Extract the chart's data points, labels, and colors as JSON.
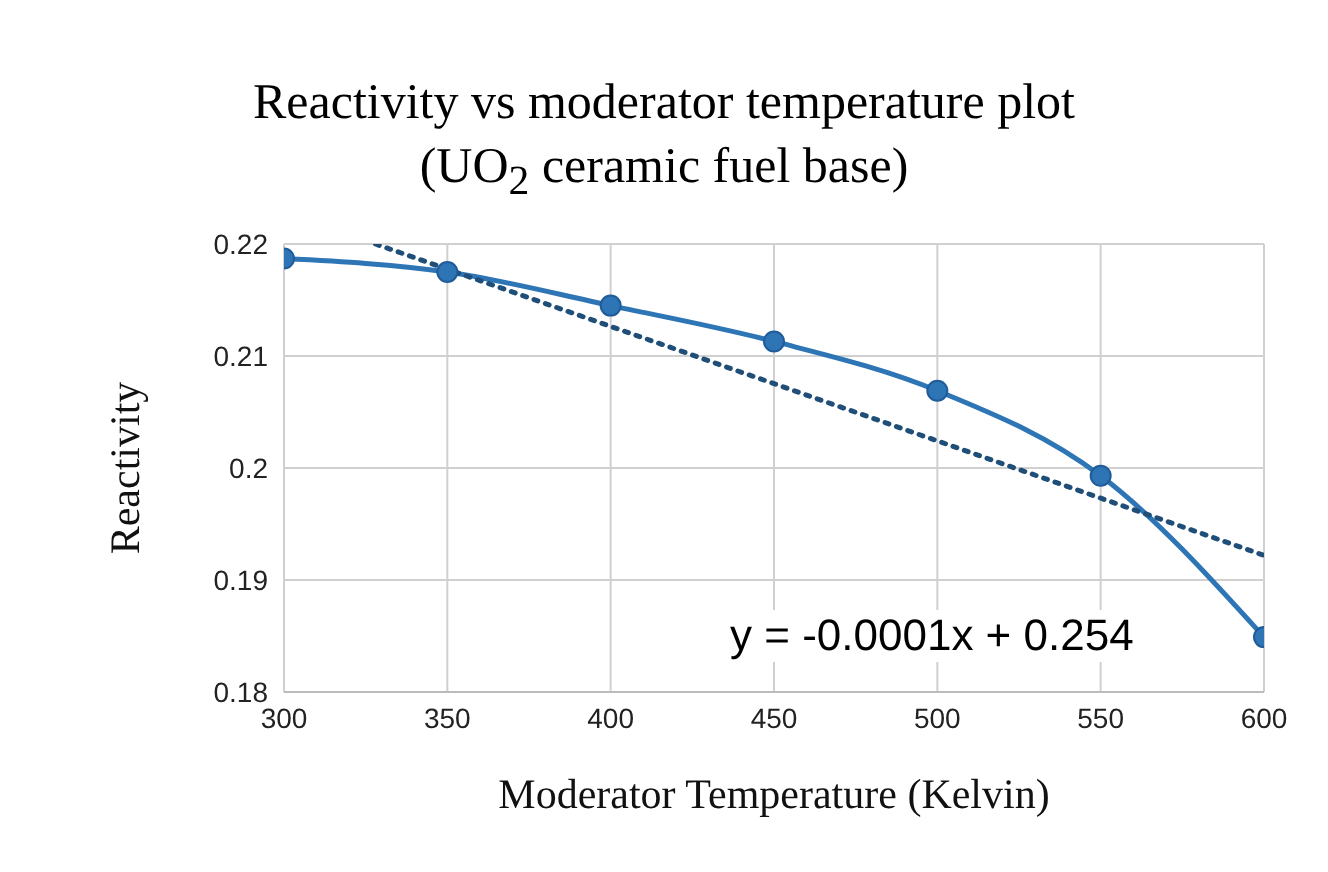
{
  "chart_data": {
    "type": "line",
    "title": "Reactivity vs moderator temperature plot",
    "subtitle": "(UO$_{2}$ ceramic fuel base)",
    "xlabel": "Moderator Temperature (Kelvin)",
    "ylabel": "Reactivity",
    "x": [
      300,
      350,
      400,
      450,
      500,
      550,
      600
    ],
    "series": [
      {
        "color": "#2e75b6",
        "values": [
          0.2187,
          0.2175,
          0.2145,
          0.2113,
          0.2069,
          0.1993,
          0.1849
        ],
        "marker": "circle",
        "line_style": "solid"
      },
      {
        "type": "line",
        "color": "#1f4e79",
        "x": [
          328,
          600
        ],
        "values": [
          0.22,
          0.1922
        ],
        "marker": "none",
        "line_style": "dotted"
      }
    ],
    "xlim": [
      300,
      600
    ],
    "xticks": [
      300,
      350,
      400,
      450,
      500,
      550,
      600
    ],
    "ylim": [
      0.18,
      0.22
    ],
    "yticks": [
      0.18,
      0.19,
      0.2,
      0.21,
      0.22
    ],
    "grid": true,
    "annotations": [
      "y = -0.0001x + 0.254"
    ]
  }
}
